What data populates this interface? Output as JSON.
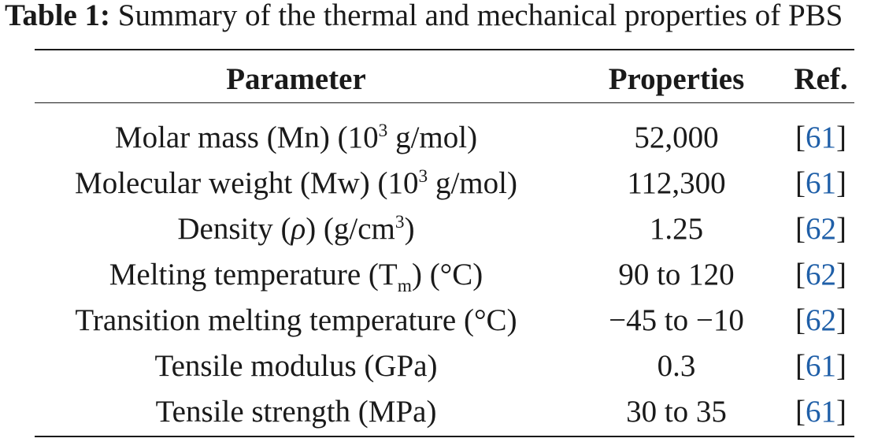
{
  "caption": {
    "label": "Table 1:",
    "text": "Summary of the thermal and mechanical properties of PBS"
  },
  "table": {
    "headers": [
      "Parameter",
      "Properties",
      "Ref."
    ],
    "rows": [
      {
        "p_pre": "Molar mass (Mn) (10",
        "p_sup": "3",
        "p_post": " g/mol)",
        "value": "52,000",
        "ref": "61"
      },
      {
        "p_pre": "Molecular weight (Mw) (10",
        "p_sup": "3",
        "p_post": " g/mol)",
        "value": "112,300",
        "ref": "61"
      },
      {
        "p_pre": "Density (",
        "p_sym": "ρ",
        "p_mid": ") (g/cm",
        "p_sup": "3",
        "p_post": ")",
        "value": "1.25",
        "ref": "62"
      },
      {
        "p_pre": "Melting temperature (T",
        "p_sub": "m",
        "p_post": ") (°C)",
        "value": "90 to 120",
        "ref": "62"
      },
      {
        "p_text": "Transition melting temperature (°C)",
        "value": "−45 to −10",
        "ref": "62"
      },
      {
        "p_text": "Tensile modulus (GPa)",
        "value": "0.3",
        "ref": "61"
      },
      {
        "p_text": "Tensile strength (MPa)",
        "value": "30 to 35",
        "ref": "61"
      }
    ]
  },
  "colors": {
    "link": "#1f5fa8",
    "text": "#1a1a1a"
  }
}
